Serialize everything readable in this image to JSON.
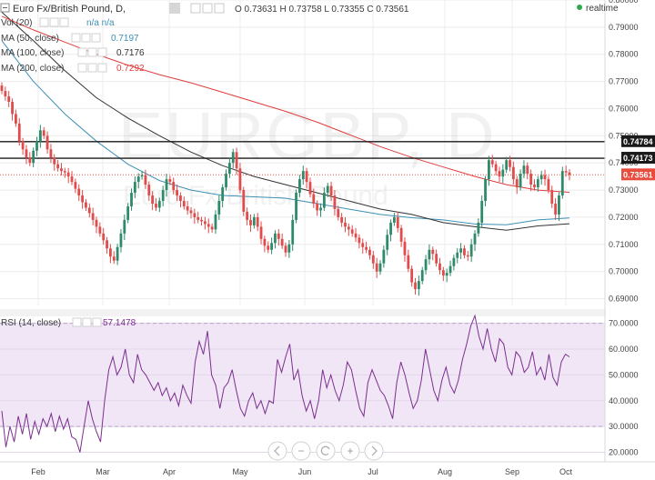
{
  "header": {
    "symbol": "Euro Fx/British Pound, D,",
    "ohlc": "O 0.73631 H 0.73758 L 0.73355 C 0.73561",
    "realtime": "realtime",
    "watermark_main": "EURGBP, D",
    "watermark_sub": "Euro Fx/British Pound"
  },
  "indicators": {
    "vol": {
      "label": "Vol (20)",
      "value": "n/a  n/a"
    },
    "ma50": {
      "label": "MA (50, close)",
      "value": "0.7197",
      "color": "#3d8fb5"
    },
    "ma100": {
      "label": "MA (100, close)",
      "value": "0.7176",
      "color": "#333333"
    },
    "ma200": {
      "label": "MA (200, close)",
      "value": "0.7292",
      "color": "#e03c3c"
    },
    "rsi": {
      "label": "RSI (14, close)",
      "value": "57.1478"
    }
  },
  "colors": {
    "up": "#2f8a6a",
    "down": "#e04b4b",
    "rsi_band": "#f1e6f6",
    "rsi_line": "#7b2e8e",
    "price_tag": "#e84c3d",
    "level_tag": "#1a1a1a"
  },
  "chart_data": [
    {
      "type": "candlestick",
      "title": "EURGBP, D",
      "ylim": [
        0.6875,
        0.8
      ],
      "yticks": [
        "0.80000",
        "0.79000",
        "0.78000",
        "0.77000",
        "0.76000",
        "0.75000",
        "0.74000",
        "0.73000",
        "0.72000",
        "0.71000",
        "0.70000",
        "0.69000"
      ],
      "xticks": [
        "Feb",
        "Mar",
        "Apr",
        "May",
        "Jun",
        "Jul",
        "Aug",
        "Sep",
        "Oct"
      ],
      "horizontal_lines": [
        0.74784,
        0.74173
      ],
      "last_price": 0.73561,
      "level_labels": [
        "0.74784",
        "0.74173"
      ],
      "last_label": "0.73561",
      "close": [
        0.7665,
        0.7645,
        0.7625,
        0.758,
        0.7545,
        0.748,
        0.745,
        0.742,
        0.74,
        0.7445,
        0.748,
        0.752,
        0.75,
        0.745,
        0.742,
        0.7395,
        0.738,
        0.737,
        0.7365,
        0.735,
        0.733,
        0.7305,
        0.728,
        0.7255,
        0.7235,
        0.7215,
        0.719,
        0.7165,
        0.714,
        0.7115,
        0.7085,
        0.7055,
        0.704,
        0.709,
        0.714,
        0.719,
        0.724,
        0.729,
        0.733,
        0.735,
        0.7355,
        0.732,
        0.728,
        0.725,
        0.7235,
        0.726,
        0.73,
        0.734,
        0.733,
        0.73,
        0.728,
        0.726,
        0.724,
        0.7225,
        0.7215,
        0.72,
        0.719,
        0.7185,
        0.7175,
        0.7165,
        0.7155,
        0.721,
        0.726,
        0.731,
        0.736,
        0.74,
        0.744,
        0.738,
        0.73,
        0.722,
        0.719,
        0.717,
        0.72,
        0.7165,
        0.712,
        0.7095,
        0.708,
        0.7105,
        0.714,
        0.712,
        0.7095,
        0.707,
        0.71,
        0.719,
        0.729,
        0.734,
        0.737,
        0.733,
        0.7285,
        0.725,
        0.7225,
        0.7235,
        0.729,
        0.7315,
        0.728,
        0.723,
        0.72,
        0.718,
        0.7165,
        0.7155,
        0.714,
        0.7125,
        0.7105,
        0.709,
        0.708,
        0.706,
        0.703,
        0.7,
        0.703,
        0.708,
        0.7135,
        0.718,
        0.72,
        0.716,
        0.711,
        0.706,
        0.701,
        0.696,
        0.6935,
        0.6965,
        0.7005,
        0.7045,
        0.708,
        0.7065,
        0.703,
        0.7005,
        0.6985,
        0.6995,
        0.702,
        0.705,
        0.707,
        0.7085,
        0.706,
        0.7055,
        0.71,
        0.714,
        0.718,
        0.726,
        0.734,
        0.741,
        0.7395,
        0.737,
        0.735,
        0.7375,
        0.741,
        0.7385,
        0.734,
        0.731,
        0.736,
        0.739,
        0.736,
        0.732,
        0.731,
        0.734,
        0.7355,
        0.734,
        0.73,
        0.725,
        0.721,
        0.728,
        0.737,
        0.7365,
        0.7356
      ],
      "series": [
        {
          "name": "MA (50, close)",
          "values": [
            0.785,
            0.77,
            0.758,
            0.748,
            0.7395,
            0.7335,
            0.73,
            0.728,
            0.7275,
            0.727,
            0.725,
            0.723,
            0.721,
            0.7198,
            0.719,
            0.7175,
            0.7172,
            0.719,
            0.7197
          ]
        },
        {
          "name": "MA (100, close)",
          "values": [
            0.7955,
            0.785,
            0.774,
            0.764,
            0.7565,
            0.75,
            0.744,
            0.739,
            0.735,
            0.732,
            0.729,
            0.726,
            0.723,
            0.721,
            0.718,
            0.7165,
            0.7152,
            0.7168,
            0.7176
          ]
        },
        {
          "name": "MA (200, close)",
          "values": [
            0.794,
            0.789,
            0.7845,
            0.78,
            0.776,
            0.7725,
            0.7695,
            0.766,
            0.7625,
            0.759,
            0.755,
            0.7505,
            0.746,
            0.742,
            0.7385,
            0.735,
            0.732,
            0.73,
            0.7292
          ]
        }
      ]
    },
    {
      "type": "line",
      "title": "RSI (14, close)",
      "ylim": [
        17,
        72
      ],
      "yticks": [
        "70.0000",
        "60.0000",
        "50.0000",
        "40.0000",
        "30.0000",
        "20.0000"
      ],
      "bands": [
        30,
        70
      ],
      "series": [
        {
          "name": "RSI (14, close)",
          "values": [
            36,
            22,
            30,
            24,
            34,
            27,
            35,
            25,
            32,
            27,
            33,
            30,
            35,
            28,
            34,
            29,
            33,
            26,
            25,
            20,
            30,
            40,
            33,
            28,
            24,
            40,
            52,
            57,
            50,
            53,
            60,
            50,
            47,
            58,
            52,
            50,
            47,
            44,
            47,
            42,
            45,
            40,
            43,
            38,
            46,
            42,
            39,
            55,
            63,
            58,
            67,
            50,
            46,
            37,
            45,
            47,
            52,
            44,
            37,
            34,
            40,
            43,
            37,
            40,
            35,
            40,
            39,
            56,
            51,
            57,
            62,
            48,
            52,
            42,
            36,
            40,
            33,
            40,
            52,
            45,
            50,
            44,
            40,
            46,
            55,
            52,
            44,
            37,
            34,
            47,
            52,
            48,
            44,
            42,
            38,
            33,
            47,
            55,
            50,
            43,
            37,
            40,
            48,
            60,
            52,
            44,
            40,
            48,
            53,
            46,
            43,
            48,
            56,
            62,
            69,
            73,
            65,
            60,
            68,
            60,
            55,
            64,
            62,
            53,
            50,
            59,
            57,
            51,
            53,
            59,
            50,
            53,
            48,
            58,
            49,
            46,
            55,
            58,
            57
          ]
        }
      ]
    }
  ],
  "navigation": {
    "zoom_out": "−",
    "zoom_in": "+"
  }
}
